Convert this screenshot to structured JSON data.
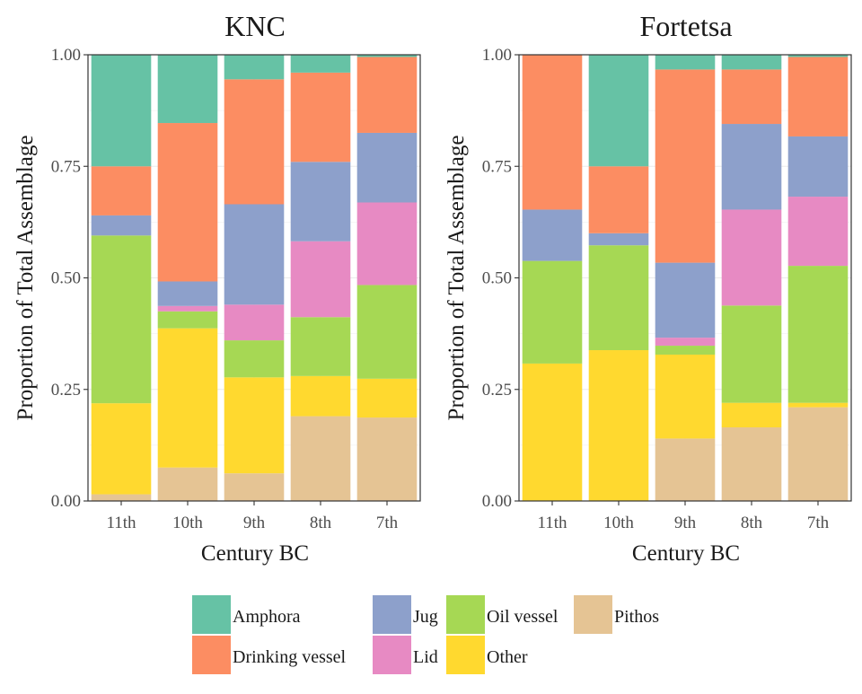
{
  "chart_data": [
    {
      "type": "bar",
      "stacked": true,
      "title": "KNC",
      "xlabel": "Century BC",
      "ylabel": "Proportion of Total Assemblage",
      "ylim": [
        0,
        1
      ],
      "yticks": [
        "0.00",
        "0.25",
        "0.50",
        "0.75",
        "1.00"
      ],
      "categories": [
        "11th",
        "10th",
        "9th",
        "8th",
        "7th"
      ],
      "grid": true,
      "series": [
        {
          "name": "Pithos",
          "color": "#e5c494",
          "values": [
            0.015,
            0.075,
            0.062,
            0.19,
            0.187
          ]
        },
        {
          "name": "Other",
          "color": "#ffd92f",
          "values": [
            0.204,
            0.312,
            0.215,
            0.09,
            0.087
          ]
        },
        {
          "name": "Oil vessel",
          "color": "#a6d854",
          "values": [
            0.376,
            0.038,
            0.083,
            0.132,
            0.21
          ]
        },
        {
          "name": "Lid",
          "color": "#e78ac3",
          "values": [
            0.0,
            0.012,
            0.08,
            0.17,
            0.185
          ]
        },
        {
          "name": "Jug",
          "color": "#8da0cb",
          "values": [
            0.045,
            0.055,
            0.225,
            0.178,
            0.156
          ]
        },
        {
          "name": "Drinking vessel",
          "color": "#fc8d62",
          "values": [
            0.11,
            0.355,
            0.28,
            0.2,
            0.17
          ]
        },
        {
          "name": "Amphora",
          "color": "#66c2a5",
          "values": [
            0.25,
            0.153,
            0.055,
            0.04,
            0.005
          ]
        }
      ]
    },
    {
      "type": "bar",
      "stacked": true,
      "title": "Fortetsa",
      "xlabel": "Century BC",
      "ylabel": "Proportion of Total Assemblage",
      "ylim": [
        0,
        1
      ],
      "yticks": [
        "0.00",
        "0.25",
        "0.50",
        "0.75",
        "1.00"
      ],
      "categories": [
        "11th",
        "10th",
        "9th",
        "8th",
        "7th"
      ],
      "grid": true,
      "series": [
        {
          "name": "Pithos",
          "color": "#e5c494",
          "values": [
            0.0,
            0.0,
            0.14,
            0.165,
            0.21
          ]
        },
        {
          "name": "Other",
          "color": "#ffd92f",
          "values": [
            0.308,
            0.338,
            0.188,
            0.055,
            0.01
          ]
        },
        {
          "name": "Oil vessel",
          "color": "#a6d854",
          "values": [
            0.23,
            0.235,
            0.02,
            0.218,
            0.307
          ]
        },
        {
          "name": "Lid",
          "color": "#e78ac3",
          "values": [
            0.0,
            0.0,
            0.018,
            0.215,
            0.155
          ]
        },
        {
          "name": "Jug",
          "color": "#8da0cb",
          "values": [
            0.115,
            0.027,
            0.168,
            0.192,
            0.135
          ]
        },
        {
          "name": "Drinking vessel",
          "color": "#fc8d62",
          "values": [
            0.347,
            0.15,
            0.433,
            0.122,
            0.178
          ]
        },
        {
          "name": "Amphora",
          "color": "#66c2a5",
          "values": [
            0.0,
            0.25,
            0.033,
            0.033,
            0.005
          ]
        }
      ]
    }
  ],
  "legend": {
    "position": "bottom",
    "items": [
      {
        "name": "Amphora",
        "color": "#66c2a5"
      },
      {
        "name": "Drinking vessel",
        "color": "#fc8d62"
      },
      {
        "name": "Jug",
        "color": "#8da0cb"
      },
      {
        "name": "Lid",
        "color": "#e78ac3"
      },
      {
        "name": "Oil vessel",
        "color": "#a6d854"
      },
      {
        "name": "Other",
        "color": "#ffd92f"
      },
      {
        "name": "Pithos",
        "color": "#e5c494"
      }
    ]
  }
}
